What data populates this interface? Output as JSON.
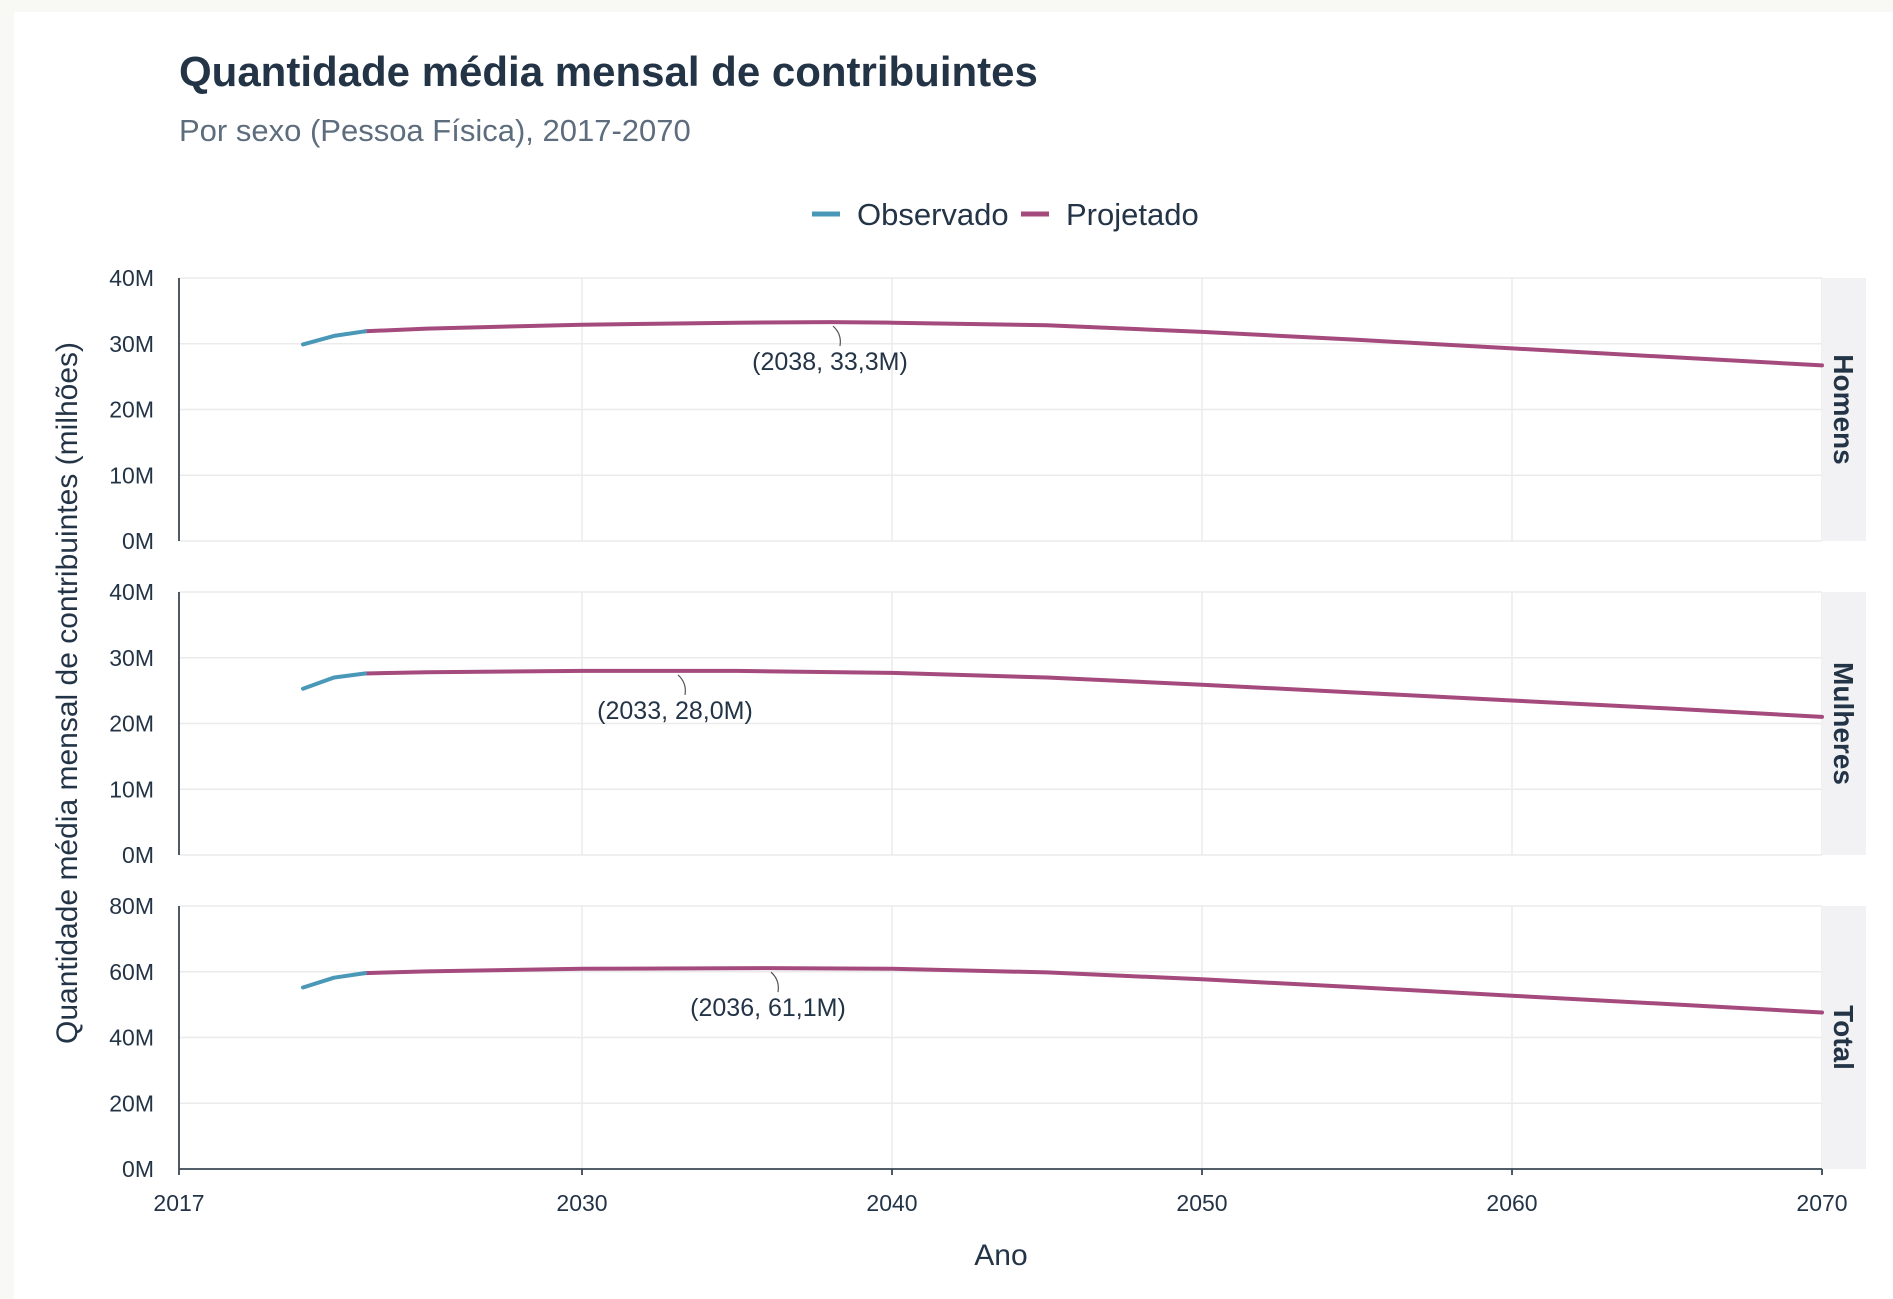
{
  "title": "Quantidade média mensal de contribuintes",
  "subtitle": "Por sexo (Pessoa Física), 2017-2070",
  "legend": [
    {
      "label": "Observado",
      "color": "#4a98b8"
    },
    {
      "label": "Projetado",
      "color": "#a54a7c"
    }
  ],
  "chart_data": {
    "type": "line",
    "xlabel": "Ano",
    "ylabel": "Quantidade média mensal de contribuintes (milhões)",
    "xlim": [
      2017,
      2070
    ],
    "x_ticks": [
      "2017",
      "2030",
      "2040",
      "2050",
      "2060",
      "2070"
    ],
    "grid": true,
    "legend_position": "top",
    "colors": {
      "observado": "#4a98b8",
      "projetado": "#a54a7c"
    },
    "panels": [
      {
        "name": "Homens",
        "ylim": [
          0,
          40
        ],
        "y_ticks": [
          "0M",
          "10M",
          "20M",
          "30M",
          "40M"
        ],
        "observado": {
          "x": [
            2021,
            2022,
            2023
          ],
          "y": [
            29.9,
            31.2,
            31.9
          ]
        },
        "projetado": {
          "x": [
            2023,
            2025,
            2030,
            2035,
            2038,
            2040,
            2045,
            2050,
            2055,
            2060,
            2065,
            2070
          ],
          "y": [
            31.9,
            32.3,
            32.9,
            33.2,
            33.3,
            33.2,
            32.8,
            31.8,
            30.6,
            29.3,
            28.0,
            26.7
          ]
        },
        "annotation": {
          "label": "(2038, 33,3M)",
          "x": 2038,
          "y": 33.3
        }
      },
      {
        "name": "Mulheres",
        "ylim": [
          0,
          40
        ],
        "y_ticks": [
          "0M",
          "10M",
          "20M",
          "30M",
          "40M"
        ],
        "observado": {
          "x": [
            2021,
            2022,
            2023
          ],
          "y": [
            25.3,
            27.0,
            27.6
          ]
        },
        "projetado": {
          "x": [
            2023,
            2025,
            2030,
            2033,
            2035,
            2040,
            2045,
            2050,
            2055,
            2060,
            2065,
            2070
          ],
          "y": [
            27.6,
            27.8,
            28.0,
            28.0,
            28.0,
            27.7,
            27.0,
            25.9,
            24.7,
            23.5,
            22.3,
            21.0
          ]
        },
        "annotation": {
          "label": "(2033, 28,0M)",
          "x": 2033,
          "y": 28.0
        }
      },
      {
        "name": "Total",
        "ylim": [
          0,
          80
        ],
        "y_ticks": [
          "0M",
          "20M",
          "40M",
          "60M",
          "80M"
        ],
        "observado": {
          "x": [
            2021,
            2022,
            2023
          ],
          "y": [
            55.2,
            58.2,
            59.6
          ]
        },
        "projetado": {
          "x": [
            2023,
            2025,
            2030,
            2036,
            2040,
            2045,
            2050,
            2055,
            2060,
            2065,
            2070
          ],
          "y": [
            59.6,
            60.1,
            60.9,
            61.1,
            60.9,
            59.8,
            57.7,
            55.3,
            52.7,
            50.2,
            47.6
          ]
        },
        "annotation": {
          "label": "(2036, 61,1M)",
          "x": 2036,
          "y": 61.1
        }
      }
    ]
  }
}
